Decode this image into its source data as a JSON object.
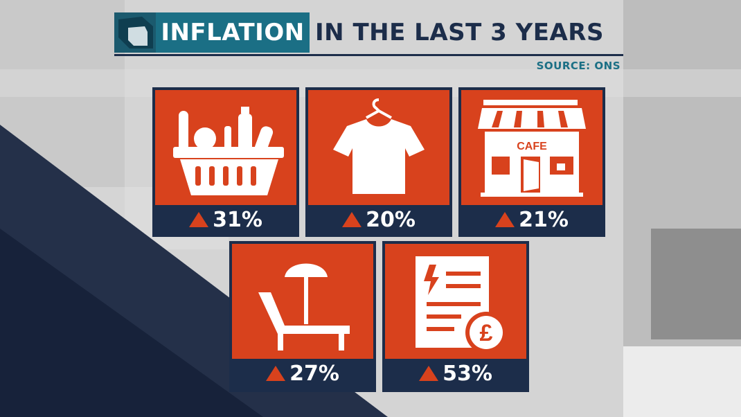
{
  "header": {
    "highlight": "INFLATION",
    "rest": "IN THE LAST 3 YEARS",
    "source": "SOURCE: ONS"
  },
  "colors": {
    "tile": "#d8421d",
    "navy": "#1c2d4a",
    "teal": "#1b6f85"
  },
  "cards": [
    {
      "icon": "shopping-basket-icon",
      "value": "31%"
    },
    {
      "icon": "t-shirt-icon",
      "value": "20%"
    },
    {
      "icon": "cafe-icon",
      "value": "21%",
      "sign": "CAFE"
    },
    {
      "icon": "sun-lounger-icon",
      "value": "27%"
    },
    {
      "icon": "energy-bill-icon",
      "value": "53%"
    }
  ]
}
